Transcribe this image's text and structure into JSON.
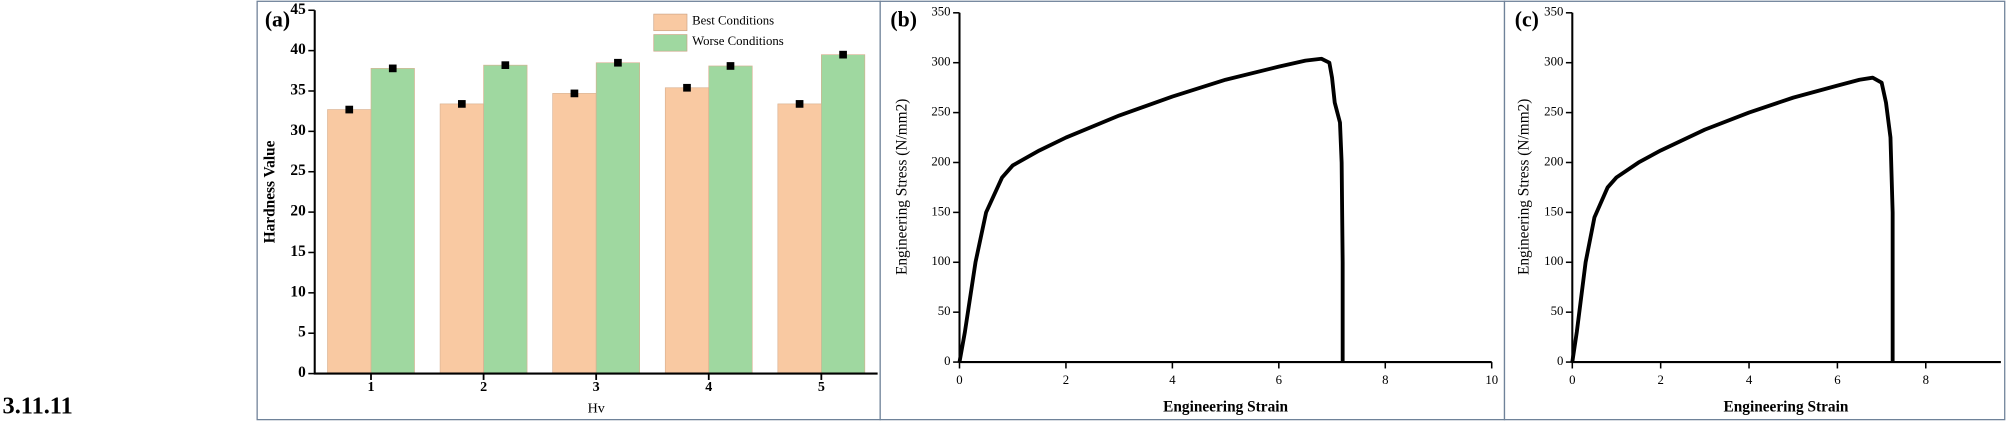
{
  "section": "3.11.11",
  "chart_data": [
    {
      "type": "bar",
      "title": "(a)",
      "x_label": "Hv",
      "y_label": "Hardness Value",
      "categories": [
        "1",
        "2",
        "3",
        "4",
        "5"
      ],
      "series": [
        {
          "name": "Best Conditions",
          "color": "#f9c9a2",
          "values": [
            32.7,
            33.4,
            34.7,
            35.4,
            33.4
          ]
        },
        {
          "name": "Worse Conditions",
          "color": "#9fd8a0",
          "values": [
            37.8,
            38.2,
            38.5,
            38.1,
            39.5
          ]
        }
      ],
      "ylim": [
        0,
        45
      ],
      "yticks": [
        0,
        5,
        10,
        15,
        20,
        25,
        30,
        35,
        40,
        45
      ],
      "legend": "upper right"
    },
    {
      "type": "line",
      "title": "(b)",
      "x_label": "Engineering Strain",
      "y_label": "Engineering Stress (N/mm2)",
      "x": [
        0,
        0.1,
        0.3,
        0.5,
        0.8,
        1,
        1.5,
        2,
        3,
        4,
        5,
        6,
        6.5,
        6.8,
        6.95,
        7.0,
        7.05,
        7.15,
        7.18,
        7.2,
        7.2
      ],
      "values": [
        0,
        30,
        100,
        150,
        185,
        197,
        212,
        225,
        247,
        266,
        283,
        296,
        302,
        304,
        300,
        285,
        260,
        240,
        200,
        100,
        0
      ],
      "color": "#000000",
      "xlim": [
        0,
        10
      ],
      "xticks": [
        0,
        2,
        4,
        6,
        8,
        10
      ],
      "ylim": [
        0,
        350
      ],
      "yticks": [
        0,
        50,
        100,
        150,
        200,
        250,
        300,
        350
      ]
    },
    {
      "type": "line",
      "title": "(c)",
      "x_label": "Engineering Strain",
      "y_label": "Engineering Stress (N/mm2)",
      "x": [
        0,
        0.1,
        0.3,
        0.5,
        0.8,
        1,
        1.5,
        2,
        3,
        4,
        5,
        6,
        6.5,
        6.8,
        7.0,
        7.1,
        7.2,
        7.25,
        7.25
      ],
      "values": [
        0,
        30,
        100,
        145,
        175,
        185,
        200,
        212,
        233,
        250,
        265,
        277,
        283,
        285,
        280,
        260,
        225,
        150,
        0
      ],
      "color": "#000000",
      "xlim": [
        0,
        9.7
      ],
      "xticks": [
        0,
        2,
        4,
        6,
        8
      ],
      "ylim": [
        0,
        350
      ],
      "yticks": [
        0,
        50,
        100,
        150,
        200,
        250,
        300,
        350
      ]
    }
  ]
}
